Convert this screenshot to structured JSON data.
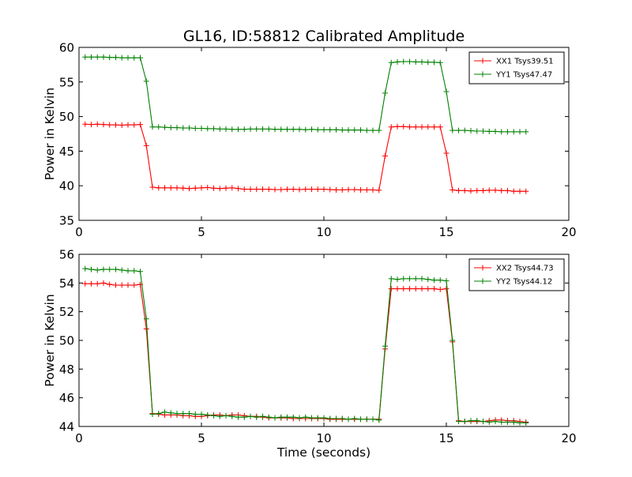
{
  "figure": {
    "title": "GL16, ID:58812 Calibrated Amplitude",
    "xlabel": "Time (seconds)"
  },
  "chart_data": [
    {
      "type": "line",
      "ylabel": "Power in Kelvin",
      "xlim": [
        0,
        20
      ],
      "ylim": [
        35,
        60
      ],
      "xticks": [
        "0",
        "5",
        "10",
        "15",
        "20"
      ],
      "yticks": [
        "35",
        "40",
        "45",
        "50",
        "55",
        "60"
      ],
      "legend_position": "top-right",
      "grid": false,
      "series": [
        {
          "name": "XX1 Tsys39.51",
          "color": "#ff0000",
          "x": [
            0.25,
            0.5,
            0.75,
            1.0,
            1.25,
            1.5,
            1.75,
            2.0,
            2.25,
            2.5,
            2.75,
            3.0,
            3.25,
            3.5,
            3.75,
            4.0,
            4.25,
            4.5,
            4.75,
            5.0,
            5.25,
            5.5,
            5.75,
            6.0,
            6.25,
            6.5,
            6.75,
            7.0,
            7.25,
            7.5,
            7.75,
            8.0,
            8.25,
            8.5,
            8.75,
            9.0,
            9.25,
            9.5,
            9.75,
            10.0,
            10.25,
            10.5,
            10.75,
            11.0,
            11.25,
            11.5,
            11.75,
            12.0,
            12.25,
            12.5,
            12.75,
            13.0,
            13.25,
            13.5,
            13.75,
            14.0,
            14.25,
            14.5,
            14.75,
            15.0,
            15.25,
            15.5,
            15.75,
            16.0,
            16.25,
            16.5,
            16.75,
            17.0,
            17.25,
            17.5,
            17.75,
            18.0,
            18.25
          ],
          "y": [
            48.9,
            48.85,
            48.9,
            48.85,
            48.8,
            48.8,
            48.75,
            48.8,
            48.8,
            48.85,
            45.8,
            39.8,
            39.7,
            39.7,
            39.7,
            39.7,
            39.65,
            39.6,
            39.65,
            39.7,
            39.75,
            39.65,
            39.6,
            39.65,
            39.7,
            39.6,
            39.5,
            39.5,
            39.5,
            39.5,
            39.5,
            39.45,
            39.45,
            39.5,
            39.5,
            39.45,
            39.5,
            39.5,
            39.5,
            39.5,
            39.45,
            39.4,
            39.4,
            39.45,
            39.45,
            39.4,
            39.4,
            39.4,
            39.35,
            44.3,
            48.5,
            48.55,
            48.55,
            48.5,
            48.5,
            48.5,
            48.5,
            48.5,
            48.5,
            44.7,
            39.4,
            39.3,
            39.3,
            39.25,
            39.3,
            39.3,
            39.35,
            39.35,
            39.3,
            39.3,
            39.2,
            39.2,
            39.2
          ]
        },
        {
          "name": "YY1 Tsys47.47",
          "color": "#008000",
          "x": [
            0.25,
            0.5,
            0.75,
            1.0,
            1.25,
            1.5,
            1.75,
            2.0,
            2.25,
            2.5,
            2.75,
            3.0,
            3.25,
            3.5,
            3.75,
            4.0,
            4.25,
            4.5,
            4.75,
            5.0,
            5.25,
            5.5,
            5.75,
            6.0,
            6.25,
            6.5,
            6.75,
            7.0,
            7.25,
            7.5,
            7.75,
            8.0,
            8.25,
            8.5,
            8.75,
            9.0,
            9.25,
            9.5,
            9.75,
            10.0,
            10.25,
            10.5,
            10.75,
            11.0,
            11.25,
            11.5,
            11.75,
            12.0,
            12.25,
            12.5,
            12.75,
            13.0,
            13.25,
            13.5,
            13.75,
            14.0,
            14.25,
            14.5,
            14.75,
            15.0,
            15.25,
            15.5,
            15.75,
            16.0,
            16.25,
            16.5,
            16.75,
            17.0,
            17.25,
            17.5,
            17.75,
            18.0,
            18.25
          ],
          "y": [
            58.6,
            58.6,
            58.6,
            58.6,
            58.55,
            58.55,
            58.5,
            58.5,
            58.5,
            58.5,
            55.1,
            48.5,
            48.5,
            48.45,
            48.4,
            48.4,
            48.35,
            48.35,
            48.3,
            48.3,
            48.25,
            48.25,
            48.2,
            48.2,
            48.15,
            48.15,
            48.15,
            48.2,
            48.2,
            48.2,
            48.2,
            48.15,
            48.15,
            48.15,
            48.15,
            48.15,
            48.1,
            48.15,
            48.1,
            48.1,
            48.1,
            48.1,
            48.05,
            48.05,
            48.05,
            48.05,
            48.0,
            48.0,
            48.0,
            53.4,
            57.8,
            57.9,
            57.95,
            57.95,
            57.9,
            57.9,
            57.85,
            57.85,
            57.8,
            53.6,
            48.0,
            48.0,
            48.0,
            47.95,
            47.9,
            47.9,
            47.85,
            47.85,
            47.8,
            47.8,
            47.8,
            47.8,
            47.8
          ]
        }
      ]
    },
    {
      "type": "line",
      "ylabel": "Power in Kelvin",
      "xlabel": "Time (seconds)",
      "xlim": [
        0,
        20
      ],
      "ylim": [
        44,
        56
      ],
      "xticks": [
        "0",
        "5",
        "10",
        "15",
        "20"
      ],
      "yticks": [
        "44",
        "46",
        "48",
        "50",
        "52",
        "54",
        "56"
      ],
      "legend_position": "top-right",
      "grid": false,
      "series": [
        {
          "name": "XX2 Tsys44.73",
          "color": "#ff0000",
          "x": [
            0.25,
            0.5,
            0.75,
            1.0,
            1.25,
            1.5,
            1.75,
            2.0,
            2.25,
            2.5,
            2.75,
            3.0,
            3.25,
            3.5,
            3.75,
            4.0,
            4.25,
            4.5,
            4.75,
            5.0,
            5.25,
            5.5,
            5.75,
            6.0,
            6.25,
            6.5,
            6.75,
            7.0,
            7.25,
            7.5,
            7.75,
            8.0,
            8.25,
            8.5,
            8.75,
            9.0,
            9.25,
            9.5,
            9.75,
            10.0,
            10.25,
            10.5,
            10.75,
            11.0,
            11.25,
            11.5,
            11.75,
            12.0,
            12.25,
            12.5,
            12.75,
            13.0,
            13.25,
            13.5,
            13.75,
            14.0,
            14.25,
            14.5,
            14.75,
            15.0,
            15.25,
            15.5,
            15.75,
            16.0,
            16.25,
            16.5,
            16.75,
            17.0,
            17.25,
            17.5,
            17.75,
            18.0,
            18.25
          ],
          "y": [
            53.95,
            53.95,
            53.95,
            54.0,
            53.9,
            53.85,
            53.85,
            53.85,
            53.85,
            53.9,
            50.8,
            44.9,
            44.85,
            44.8,
            44.8,
            44.8,
            44.75,
            44.75,
            44.7,
            44.7,
            44.75,
            44.8,
            44.8,
            44.75,
            44.8,
            44.8,
            44.75,
            44.7,
            44.7,
            44.65,
            44.6,
            44.6,
            44.6,
            44.6,
            44.55,
            44.55,
            44.55,
            44.55,
            44.55,
            44.55,
            44.5,
            44.5,
            44.5,
            44.5,
            44.5,
            44.5,
            44.5,
            44.5,
            44.5,
            49.4,
            53.6,
            53.6,
            53.6,
            53.6,
            53.6,
            53.6,
            53.6,
            53.6,
            53.55,
            53.6,
            49.9,
            44.4,
            44.35,
            44.35,
            44.35,
            44.35,
            44.4,
            44.45,
            44.45,
            44.4,
            44.4,
            44.35,
            44.3
          ]
        },
        {
          "name": "YY2 Tsys44.12",
          "color": "#008000",
          "x": [
            0.25,
            0.5,
            0.75,
            1.0,
            1.25,
            1.5,
            1.75,
            2.0,
            2.25,
            2.5,
            2.75,
            3.0,
            3.25,
            3.5,
            3.75,
            4.0,
            4.25,
            4.5,
            4.75,
            5.0,
            5.25,
            5.5,
            5.75,
            6.0,
            6.25,
            6.5,
            6.75,
            7.0,
            7.25,
            7.5,
            7.75,
            8.0,
            8.25,
            8.5,
            8.75,
            9.0,
            9.25,
            9.5,
            9.75,
            10.0,
            10.25,
            10.5,
            10.75,
            11.0,
            11.25,
            11.5,
            11.75,
            12.0,
            12.25,
            12.5,
            12.75,
            13.0,
            13.25,
            13.5,
            13.75,
            14.0,
            14.25,
            14.5,
            14.75,
            15.0,
            15.25,
            15.5,
            15.75,
            16.0,
            16.25,
            16.5,
            16.75,
            17.0,
            17.25,
            17.5,
            17.75,
            18.0,
            18.25
          ],
          "y": [
            55.0,
            54.95,
            54.9,
            54.95,
            54.95,
            54.95,
            54.9,
            54.85,
            54.85,
            54.8,
            51.5,
            44.85,
            44.9,
            45.0,
            44.95,
            44.9,
            44.9,
            44.9,
            44.85,
            44.85,
            44.8,
            44.75,
            44.7,
            44.75,
            44.7,
            44.65,
            44.65,
            44.7,
            44.65,
            44.7,
            44.65,
            44.6,
            44.65,
            44.65,
            44.65,
            44.6,
            44.65,
            44.6,
            44.6,
            44.6,
            44.55,
            44.55,
            44.55,
            44.5,
            44.55,
            44.5,
            44.5,
            44.5,
            44.45,
            49.6,
            54.3,
            54.25,
            54.3,
            54.3,
            54.3,
            54.3,
            54.25,
            54.2,
            54.2,
            54.15,
            50.0,
            44.35,
            44.35,
            44.4,
            44.4,
            44.35,
            44.3,
            44.35,
            44.3,
            44.3,
            44.3,
            44.25,
            44.25
          ]
        }
      ]
    }
  ]
}
